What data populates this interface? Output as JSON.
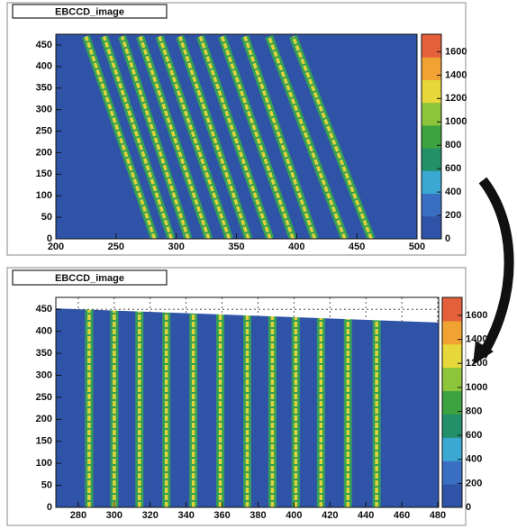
{
  "chart_data": [
    {
      "type": "heatmap",
      "title": "EBCCD_image",
      "xlim": [
        200,
        500
      ],
      "xticks": [
        200,
        250,
        300,
        350,
        400,
        450,
        500
      ],
      "ylim": [
        0,
        475
      ],
      "yticks": [
        0,
        50,
        100,
        150,
        200,
        250,
        300,
        350,
        400,
        450
      ],
      "zlim": [
        0,
        1750
      ],
      "zticks": [
        0,
        200,
        400,
        600,
        800,
        1000,
        1200,
        1400,
        1600
      ],
      "background": "#2f53a6",
      "palette": [
        "#2f53a6",
        "#3a6ec2",
        "#3aa8d2",
        "#23906a",
        "#3ca340",
        "#8cc43a",
        "#e6d83a",
        "#f0a233",
        "#e4603a"
      ],
      "stripe_color": "#e0d23c",
      "stripe_edge": "#35a055",
      "grid": false,
      "stripes": [
        {
          "x": [
            282,
            225
          ],
          "y": [
            0,
            470
          ]
        },
        {
          "x": [
            296,
            240
          ],
          "y": [
            0,
            470
          ]
        },
        {
          "x": [
            310,
            255
          ],
          "y": [
            0,
            470
          ]
        },
        {
          "x": [
            327,
            270
          ],
          "y": [
            0,
            470
          ]
        },
        {
          "x": [
            344,
            286
          ],
          "y": [
            0,
            470
          ]
        },
        {
          "x": [
            360,
            303
          ],
          "y": [
            0,
            470
          ]
        },
        {
          "x": [
            378,
            320
          ],
          "y": [
            0,
            470
          ]
        },
        {
          "x": [
            397,
            338
          ],
          "y": [
            0,
            470
          ]
        },
        {
          "x": [
            415,
            357
          ],
          "y": [
            0,
            470
          ]
        },
        {
          "x": [
            440,
            377
          ],
          "y": [
            0,
            470
          ]
        },
        {
          "x": [
            462,
            397
          ],
          "y": [
            0,
            470
          ]
        }
      ]
    },
    {
      "type": "heatmap",
      "title": "EBCCD_image",
      "xlim": [
        267.5,
        480.5
      ],
      "xticks": [
        280,
        300,
        320,
        340,
        360,
        380,
        400,
        420,
        440,
        460,
        480
      ],
      "ylim": [
        0,
        477
      ],
      "yticks": [
        0,
        50,
        100,
        150,
        200,
        250,
        300,
        350,
        400,
        450
      ],
      "zlim": [
        0,
        1750
      ],
      "zticks": [
        0,
        200,
        400,
        600,
        800,
        1000,
        1200,
        1400,
        1600
      ],
      "background": "#2f53a6",
      "palette": [
        "#2f53a6",
        "#3a6ec2",
        "#3aa8d2",
        "#23906a",
        "#3ca340",
        "#8cc43a",
        "#e6d83a",
        "#f0a233",
        "#e4603a"
      ],
      "stripe_color": "#e0d23c",
      "stripe_edge": "#35a055",
      "grid": true,
      "mask_edge": {
        "x": [
          267.5,
          480.5
        ],
        "y": [
          452,
          420
        ]
      },
      "stripes": [
        {
          "x": [
            286,
            286
          ],
          "y": [
            0,
            452
          ]
        },
        {
          "x": [
            300,
            300
          ],
          "y": [
            0,
            452
          ]
        },
        {
          "x": [
            314,
            314
          ],
          "y": [
            0,
            452
          ]
        },
        {
          "x": [
            329,
            329
          ],
          "y": [
            0,
            452
          ]
        },
        {
          "x": [
            344,
            344
          ],
          "y": [
            0,
            452
          ]
        },
        {
          "x": [
            359,
            359
          ],
          "y": [
            0,
            452
          ]
        },
        {
          "x": [
            374,
            374
          ],
          "y": [
            0,
            452
          ]
        },
        {
          "x": [
            388,
            388
          ],
          "y": [
            0,
            452
          ]
        },
        {
          "x": [
            401,
            401
          ],
          "y": [
            0,
            452
          ]
        },
        {
          "x": [
            415,
            415
          ],
          "y": [
            0,
            452
          ]
        },
        {
          "x": [
            430,
            430
          ],
          "y": [
            0,
            452
          ]
        },
        {
          "x": [
            446,
            446
          ],
          "y": [
            0,
            452
          ]
        }
      ]
    }
  ]
}
